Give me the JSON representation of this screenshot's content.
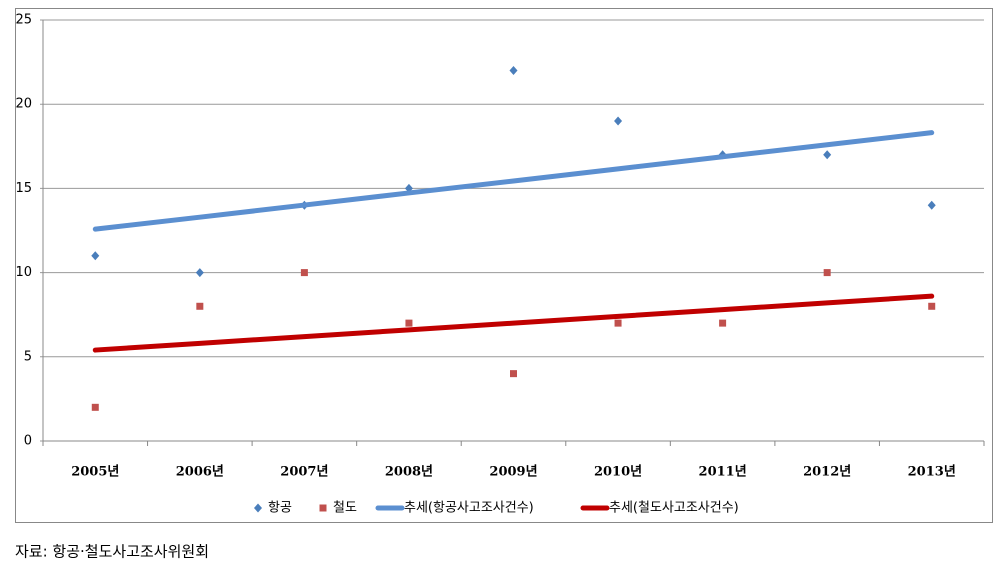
{
  "chart_data": {
    "type": "scatter-trend",
    "categories": [
      "2005년",
      "2006년",
      "2007년",
      "2008년",
      "2009년",
      "2010년",
      "2011년",
      "2012년",
      "2013년"
    ],
    "series": [
      {
        "name": "항공",
        "color": "#4a7ebb",
        "marker": "diamond",
        "values": [
          11,
          10,
          14,
          15,
          22,
          19,
          17,
          17,
          14
        ]
      },
      {
        "name": "철도",
        "color": "#c0504d",
        "marker": "square",
        "values": [
          2,
          8,
          10,
          7,
          4,
          7,
          7,
          10,
          8
        ]
      },
      {
        "name": "추세(항공사고조사건수)",
        "color": "#5b8fd0",
        "marker": "line",
        "values": [
          12.58,
          13.29,
          14.01,
          14.73,
          15.44,
          16.16,
          16.88,
          17.59,
          18.31
        ]
      },
      {
        "name": "추세(철도사고조사건수)",
        "color": "#c00000",
        "marker": "line",
        "values": [
          5.4,
          5.8,
          6.2,
          6.6,
          7.0,
          7.4,
          7.8,
          8.2,
          8.6
        ]
      }
    ],
    "ylim": [
      0,
      25
    ],
    "yticks": [
      0,
      5,
      10,
      15,
      20,
      25
    ],
    "grid": true,
    "legend": "bottom"
  },
  "source": "자료: 항공·철도사고조사위원회"
}
